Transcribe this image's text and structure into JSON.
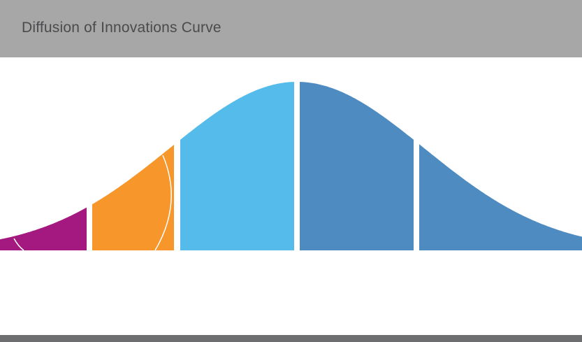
{
  "header": {
    "title": "Diffusion of Innovations Curve"
  }
}
